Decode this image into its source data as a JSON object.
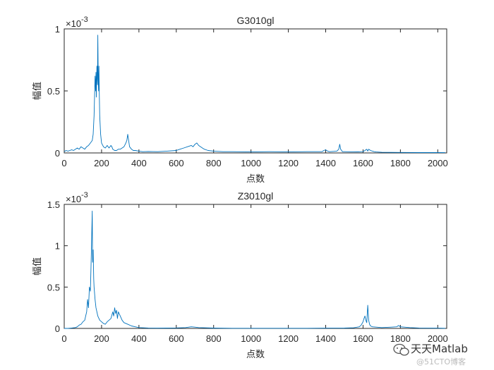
{
  "watermark": {
    "primary": "天天Matlab",
    "secondary": "@51CTO博客"
  },
  "chart_data": [
    {
      "type": "line",
      "title": "G3010gl",
      "xlabel": "点数",
      "ylabel": "幅值",
      "y_exponent": "-3",
      "xlim": [
        0,
        2048
      ],
      "ylim": [
        0,
        1
      ],
      "xticks": [
        "0",
        "200",
        "400",
        "600",
        "800",
        "1000",
        "1200",
        "1400",
        "1600",
        "1800",
        "2000"
      ],
      "yticks": [
        "0",
        "0.5",
        "1"
      ],
      "line_color": "#0072BD",
      "grid": false,
      "series": [
        {
          "x": [
            0,
            10,
            20,
            30,
            40,
            50,
            60,
            70,
            80,
            90,
            100,
            110,
            120,
            130,
            140,
            150,
            155,
            160,
            165,
            168,
            170,
            172,
            175,
            178,
            180,
            182,
            184,
            186,
            188,
            190,
            195,
            200,
            210,
            220,
            230,
            240,
            250,
            255,
            260,
            270,
            280,
            290,
            300,
            310,
            320,
            330,
            335,
            340,
            345,
            350,
            360,
            370,
            380,
            400,
            420,
            450,
            500,
            550,
            600,
            620,
            640,
            660,
            680,
            690,
            700,
            710,
            720,
            730,
            740,
            750,
            770,
            800,
            850,
            900,
            1000,
            1100,
            1200,
            1300,
            1380,
            1390,
            1400,
            1410,
            1420,
            1460,
            1470,
            1475,
            1480,
            1485,
            1490,
            1500,
            1550,
            1600,
            1610,
            1620,
            1625,
            1630,
            1640,
            1650,
            1660,
            1670,
            1700,
            1800,
            1900,
            2000,
            2040
          ],
          "y": [
            0.01,
            0.02,
            0.015,
            0.02,
            0.025,
            0.02,
            0.03,
            0.04,
            0.03,
            0.05,
            0.04,
            0.03,
            0.05,
            0.06,
            0.08,
            0.1,
            0.15,
            0.3,
            0.62,
            0.5,
            0.65,
            0.45,
            0.7,
            0.55,
            0.95,
            0.6,
            0.5,
            0.7,
            0.45,
            0.3,
            0.15,
            0.08,
            0.05,
            0.04,
            0.06,
            0.04,
            0.06,
            0.05,
            0.03,
            0.02,
            0.02,
            0.03,
            0.03,
            0.04,
            0.05,
            0.08,
            0.1,
            0.15,
            0.1,
            0.05,
            0.03,
            0.02,
            0.02,
            0.015,
            0.01,
            0.012,
            0.01,
            0.015,
            0.02,
            0.03,
            0.04,
            0.05,
            0.06,
            0.05,
            0.07,
            0.08,
            0.06,
            0.05,
            0.04,
            0.03,
            0.02,
            0.015,
            0.01,
            0.01,
            0.008,
            0.01,
            0.008,
            0.01,
            0.01,
            0.02,
            0.025,
            0.015,
            0.01,
            0.015,
            0.03,
            0.07,
            0.03,
            0.02,
            0.01,
            0.01,
            0.008,
            0.01,
            0.02,
            0.03,
            0.015,
            0.03,
            0.02,
            0.015,
            0.01,
            0.008,
            0.005,
            0.004,
            0.003,
            0.003,
            0.002
          ]
        }
      ]
    },
    {
      "type": "line",
      "title": "Z3010gl",
      "xlabel": "点数",
      "ylabel": "幅值",
      "y_exponent": "-3",
      "xlim": [
        0,
        2048
      ],
      "ylim": [
        0,
        1.5
      ],
      "xticks": [
        "0",
        "200",
        "400",
        "600",
        "800",
        "1000",
        "1200",
        "1400",
        "1600",
        "1800",
        "2000"
      ],
      "yticks": [
        "0",
        "0.5",
        "1",
        "1.5"
      ],
      "line_color": "#0072BD",
      "grid": false,
      "series": [
        {
          "x": [
            0,
            20,
            40,
            60,
            70,
            80,
            90,
            100,
            110,
            115,
            120,
            125,
            130,
            135,
            140,
            145,
            150,
            152,
            155,
            158,
            160,
            165,
            170,
            180,
            190,
            200,
            210,
            220,
            230,
            240,
            250,
            260,
            265,
            270,
            275,
            280,
            285,
            290,
            300,
            310,
            320,
            340,
            360,
            380,
            400,
            420,
            450,
            500,
            550,
            600,
            650,
            680,
            700,
            720,
            800,
            900,
            1000,
            1100,
            1200,
            1300,
            1400,
            1500,
            1550,
            1580,
            1590,
            1600,
            1605,
            1610,
            1615,
            1620,
            1625,
            1630,
            1635,
            1640,
            1650,
            1700,
            1750,
            1780,
            1790,
            1800,
            1850,
            1900,
            2000,
            2040
          ],
          "y": [
            0,
            0,
            0.005,
            0.01,
            0.02,
            0.04,
            0.05,
            0.08,
            0.1,
            0.15,
            0.2,
            0.35,
            0.25,
            0.5,
            0.45,
            0.9,
            1.42,
            0.8,
            0.95,
            0.6,
            0.5,
            0.35,
            0.25,
            0.15,
            0.1,
            0.08,
            0.06,
            0.05,
            0.08,
            0.1,
            0.12,
            0.2,
            0.15,
            0.25,
            0.18,
            0.22,
            0.12,
            0.2,
            0.15,
            0.1,
            0.07,
            0.05,
            0.03,
            0.02,
            0.01,
            0.008,
            0.005,
            0.003,
            0.004,
            0.006,
            0.01,
            0.02,
            0.015,
            0.01,
            0.004,
            0.002,
            0.002,
            0.002,
            0.002,
            0.002,
            0.003,
            0.004,
            0.008,
            0.02,
            0.04,
            0.08,
            0.12,
            0.15,
            0.1,
            0.07,
            0.28,
            0.1,
            0.05,
            0.03,
            0.02,
            0.01,
            0.015,
            0.02,
            0.035,
            0.02,
            0.01,
            0.005,
            0.003,
            0.002
          ]
        }
      ]
    }
  ]
}
